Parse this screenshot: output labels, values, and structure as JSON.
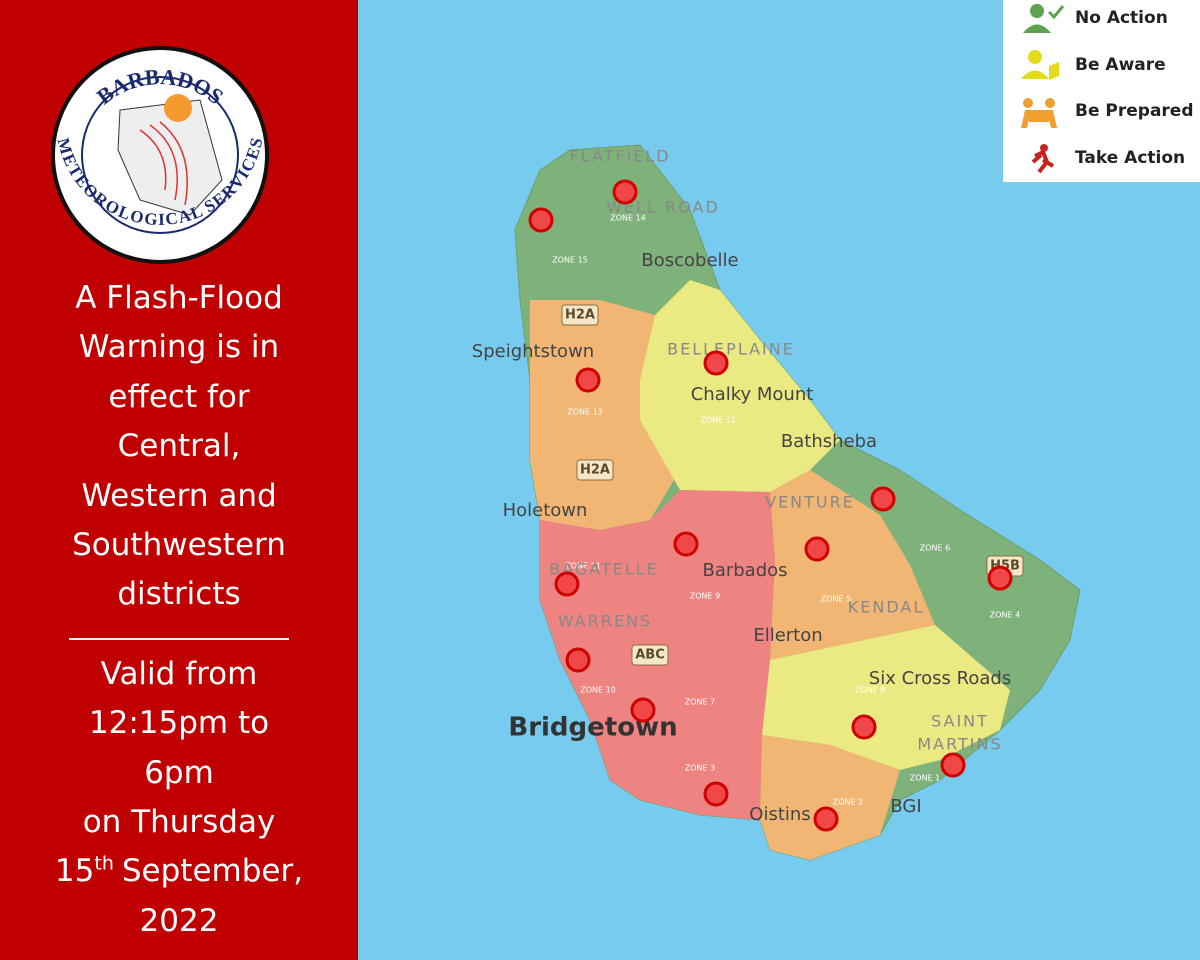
{
  "logo": {
    "top_text": "BARBADOS",
    "bottom_text": "METEOROLOGICAL SERVICES"
  },
  "warning": {
    "lines": [
      "A Flash-Flood",
      "Warning is in",
      "effect for",
      "Central,",
      "Western and",
      "Southwestern",
      "districts"
    ]
  },
  "validity": {
    "lines": [
      "Valid from",
      "12:15pm to",
      "6pm",
      "on Thursday"
    ],
    "date": {
      "day": "15",
      "suffix": "th",
      "rest": "September,"
    },
    "year": "2022"
  },
  "legend": {
    "items": [
      "No Action",
      "Be Aware",
      "Be Prepared",
      "Take Action"
    ]
  },
  "map": {
    "labels": [
      "FLATFIELD",
      "WELL ROAD",
      "ZONE 14",
      "ZONE 15",
      "Boscobelle",
      "H2A",
      "Speightstown",
      "BELLEPLAINE",
      "Chalky Mount",
      "ZONE 13",
      "ZONE 12",
      "H2A",
      "Bathsheba",
      "Holetown",
      "VENTURE",
      "ZONE 6",
      "H5B",
      "ZONE 11",
      "BAGATELLE",
      "Barbados",
      "ZONE 9",
      "ZONE 5",
      "KENDAL",
      "ZONE 4",
      "WARRENS",
      "ABC",
      "Ellerton",
      "Six Cross Roads",
      "ZONE 10",
      "ZONE 7",
      "ZONE 8",
      "Bridgetown",
      "SAINT",
      "MARTINS",
      "ZONE 3",
      "ZONE 1",
      "Oistins",
      "ZONE 2",
      "BGI"
    ]
  }
}
